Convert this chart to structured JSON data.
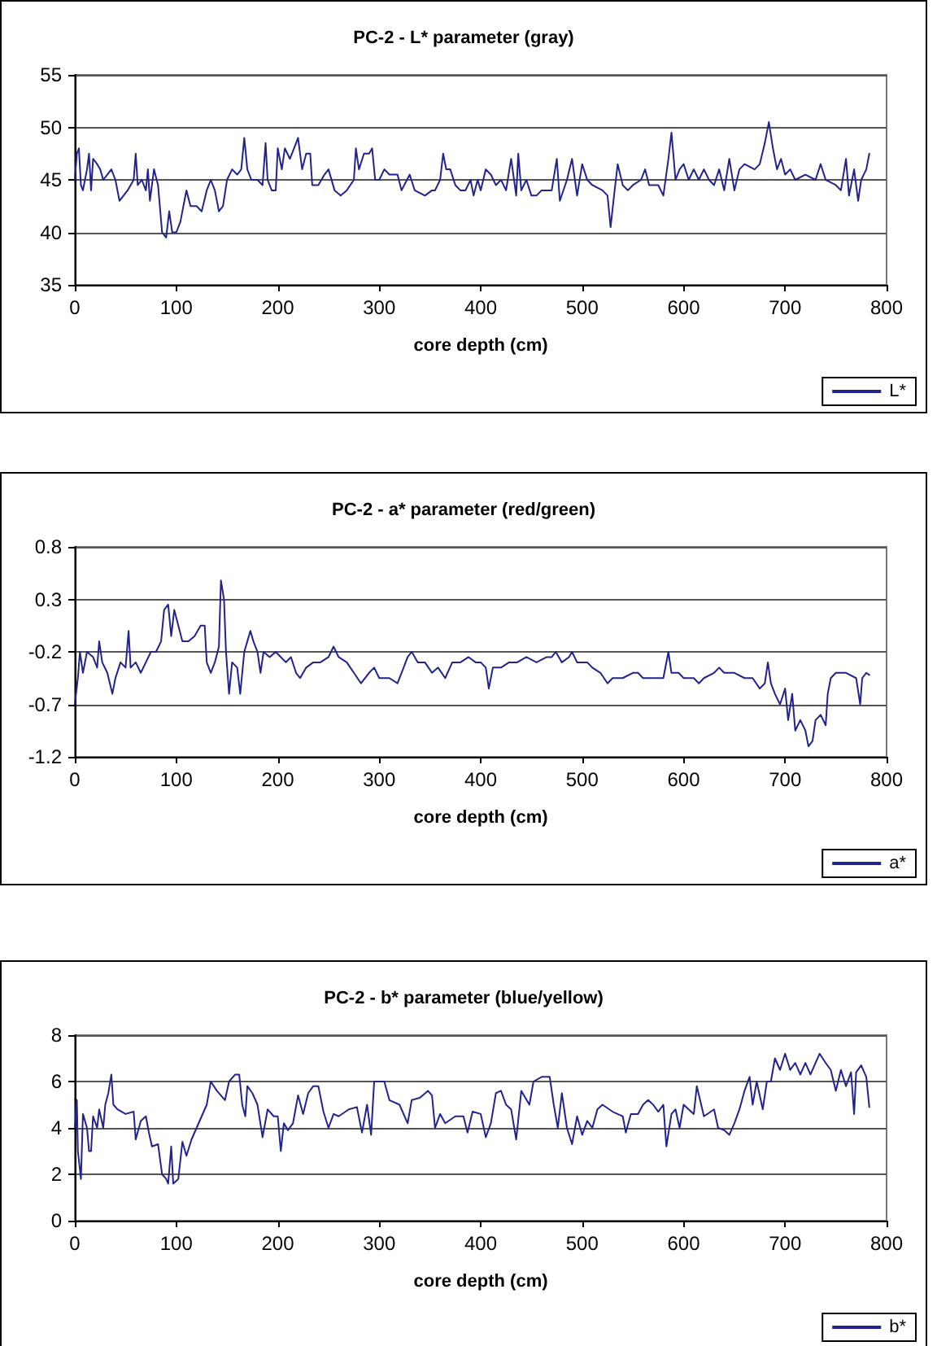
{
  "chart_data": [
    {
      "type": "line",
      "title": "PC-2 - L* parameter (gray)",
      "xlabel": "core depth (cm)",
      "xlim": [
        0,
        800
      ],
      "xticks": [
        0,
        100,
        200,
        300,
        400,
        500,
        600,
        700,
        800
      ],
      "ylim": [
        35,
        55
      ],
      "yticks": [
        35,
        40,
        45,
        50,
        55
      ],
      "grid": "y",
      "legend": "bottom right",
      "series": [
        {
          "name": "L*",
          "color": "#23238e",
          "x": [
            0,
            2,
            4,
            6,
            8,
            12,
            14,
            16,
            18,
            22,
            25,
            28,
            32,
            36,
            40,
            44,
            48,
            52,
            58,
            60,
            62,
            66,
            70,
            72,
            74,
            78,
            82,
            86,
            90,
            93,
            96,
            100,
            104,
            108,
            110,
            114,
            120,
            125,
            130,
            134,
            138,
            142,
            146,
            150,
            155,
            160,
            164,
            167,
            170,
            174,
            180,
            185,
            188,
            190,
            194,
            198,
            200,
            204,
            207,
            212,
            216,
            220,
            224,
            228,
            232,
            234,
            240,
            246,
            250,
            256,
            262,
            268,
            275,
            277,
            280,
            285,
            290,
            293,
            296,
            300,
            305,
            310,
            318,
            322,
            330,
            335,
            345,
            352,
            355,
            360,
            363,
            366,
            370,
            375,
            380,
            385,
            390,
            393,
            397,
            400,
            405,
            410,
            415,
            420,
            425,
            430,
            435,
            437,
            440,
            445,
            450,
            455,
            460,
            470,
            475,
            478,
            485,
            490,
            495,
            500,
            505,
            510,
            520,
            525,
            528,
            532,
            535,
            540,
            545,
            550,
            558,
            562,
            566,
            575,
            580,
            585,
            588,
            592,
            596,
            600,
            605,
            610,
            615,
            620,
            625,
            630,
            635,
            640,
            645,
            650,
            655,
            660,
            670,
            675,
            680,
            684,
            688,
            692,
            696,
            700,
            705,
            710,
            720,
            730,
            735,
            740,
            750,
            755,
            760,
            763,
            768,
            772,
            775,
            780,
            783
          ],
          "values": [
            45,
            47.5,
            48,
            44.5,
            44,
            46,
            47.5,
            44,
            47,
            46.5,
            46,
            45,
            45.5,
            46,
            45,
            43,
            43.5,
            44,
            45,
            47.5,
            44.5,
            45,
            44,
            46,
            43,
            46,
            44.5,
            40,
            39.5,
            42,
            40,
            40,
            41,
            43,
            44,
            42.5,
            42.5,
            42,
            44,
            45,
            44,
            42,
            42.5,
            45,
            46,
            45.5,
            46,
            49,
            46,
            45,
            45,
            44.5,
            48.5,
            45,
            44,
            44,
            48,
            46,
            48,
            47,
            48,
            49,
            46,
            47.5,
            47.5,
            44.5,
            44.5,
            45.5,
            46,
            44,
            43.5,
            44,
            45,
            48,
            46,
            47.5,
            47.5,
            48,
            45,
            45,
            46,
            45.5,
            45.5,
            44,
            45.5,
            44,
            43.5,
            44,
            44,
            45,
            47.5,
            46,
            46,
            44.5,
            44,
            44,
            45,
            43.5,
            45,
            44,
            46,
            45.5,
            44.5,
            45,
            44,
            47,
            43.5,
            47.5,
            44,
            45,
            43.5,
            43.5,
            44,
            44,
            47,
            43,
            45,
            47,
            43.5,
            46.5,
            45,
            44.5,
            44,
            43.5,
            40.5,
            44,
            46.5,
            44.5,
            44,
            44.5,
            45,
            46,
            44.5,
            44.5,
            43.5,
            47,
            49.5,
            45,
            46,
            46.5,
            45,
            46,
            45,
            46,
            45,
            44.5,
            46,
            44,
            47,
            44,
            46,
            46.5,
            46,
            46.5,
            48.5,
            50.5,
            48,
            46,
            47,
            45.5,
            46,
            45,
            45.5,
            45,
            46.5,
            45,
            44.5,
            44,
            47,
            43.5,
            46,
            43,
            45,
            46,
            47.5
          ]
        }
      ]
    },
    {
      "type": "line",
      "title": "PC-2 - a* parameter (red/green)",
      "xlabel": "core depth (cm)",
      "xlim": [
        0,
        800
      ],
      "xticks": [
        0,
        100,
        200,
        300,
        400,
        500,
        600,
        700,
        800
      ],
      "ylim": [
        -1.2,
        0.8
      ],
      "yticks": [
        -1.2,
        -0.7,
        -0.2,
        0.3,
        0.8
      ],
      "grid": "y",
      "legend": "bottom right",
      "series": [
        {
          "name": "a*",
          "color": "#23238e",
          "x": [
            0,
            3,
            5,
            8,
            12,
            18,
            22,
            24,
            27,
            32,
            37,
            40,
            45,
            50,
            53,
            55,
            60,
            65,
            70,
            75,
            80,
            85,
            88,
            92,
            95,
            98,
            102,
            106,
            112,
            118,
            124,
            128,
            130,
            134,
            138,
            142,
            144,
            147,
            149,
            152,
            155,
            160,
            163,
            167,
            170,
            173,
            176,
            180,
            183,
            186,
            192,
            198,
            203,
            208,
            213,
            218,
            222,
            228,
            235,
            242,
            250,
            255,
            260,
            268,
            275,
            282,
            290,
            295,
            300,
            310,
            318,
            322,
            328,
            332,
            338,
            345,
            352,
            358,
            365,
            372,
            380,
            388,
            395,
            400,
            405,
            408,
            412,
            420,
            428,
            436,
            445,
            455,
            465,
            470,
            474,
            480,
            487,
            490,
            495,
            500,
            505,
            510,
            518,
            525,
            530,
            540,
            550,
            555,
            560,
            570,
            580,
            585,
            588,
            595,
            600,
            610,
            615,
            620,
            630,
            635,
            640,
            650,
            660,
            668,
            675,
            680,
            683,
            686,
            690,
            695,
            700,
            703,
            707,
            710,
            715,
            720,
            723,
            727,
            730,
            735,
            740,
            742,
            745,
            750,
            760,
            770,
            774,
            776,
            780,
            783
          ],
          "values": [
            -0.7,
            -0.45,
            -0.2,
            -0.4,
            -0.2,
            -0.25,
            -0.35,
            -0.1,
            -0.3,
            -0.4,
            -0.6,
            -0.45,
            -0.3,
            -0.35,
            0.0,
            -0.35,
            -0.3,
            -0.4,
            -0.3,
            -0.2,
            -0.2,
            -0.1,
            0.2,
            0.25,
            -0.05,
            0.2,
            0.05,
            -0.1,
            -0.1,
            -0.05,
            0.05,
            0.05,
            -0.3,
            -0.4,
            -0.3,
            -0.15,
            0.48,
            0.3,
            -0.2,
            -0.6,
            -0.3,
            -0.35,
            -0.6,
            -0.2,
            -0.1,
            0.0,
            -0.1,
            -0.2,
            -0.4,
            -0.2,
            -0.25,
            -0.2,
            -0.25,
            -0.3,
            -0.25,
            -0.4,
            -0.45,
            -0.35,
            -0.3,
            -0.3,
            -0.25,
            -0.15,
            -0.25,
            -0.3,
            -0.4,
            -0.5,
            -0.4,
            -0.35,
            -0.45,
            -0.45,
            -0.5,
            -0.4,
            -0.25,
            -0.2,
            -0.3,
            -0.3,
            -0.4,
            -0.35,
            -0.45,
            -0.3,
            -0.3,
            -0.25,
            -0.3,
            -0.3,
            -0.35,
            -0.55,
            -0.35,
            -0.35,
            -0.3,
            -0.3,
            -0.25,
            -0.3,
            -0.25,
            -0.25,
            -0.2,
            -0.3,
            -0.25,
            -0.2,
            -0.3,
            -0.3,
            -0.3,
            -0.35,
            -0.4,
            -0.5,
            -0.45,
            -0.45,
            -0.4,
            -0.4,
            -0.45,
            -0.45,
            -0.45,
            -0.2,
            -0.4,
            -0.4,
            -0.45,
            -0.45,
            -0.5,
            -0.45,
            -0.4,
            -0.35,
            -0.4,
            -0.4,
            -0.45,
            -0.45,
            -0.55,
            -0.5,
            -0.3,
            -0.5,
            -0.6,
            -0.7,
            -0.55,
            -0.85,
            -0.6,
            -0.95,
            -0.85,
            -0.95,
            -1.1,
            -1.05,
            -0.85,
            -0.8,
            -0.9,
            -0.6,
            -0.45,
            -0.4,
            -0.4,
            -0.45,
            -0.7,
            -0.45,
            -0.4,
            -0.42
          ]
        }
      ]
    },
    {
      "type": "line",
      "title": "PC-2 - b* parameter (blue/yellow)",
      "xlabel": "core depth (cm)",
      "xlim": [
        0,
        800
      ],
      "xticks": [
        0,
        100,
        200,
        300,
        400,
        500,
        600,
        700,
        800
      ],
      "ylim": [
        0,
        8
      ],
      "yticks": [
        0,
        2,
        4,
        6,
        8
      ],
      "grid": "y",
      "legend": "bottom right",
      "series": [
        {
          "name": "b*",
          "color": "#23238e",
          "x": [
            0,
            2,
            3,
            6,
            8,
            12,
            14,
            16,
            18,
            22,
            24,
            28,
            30,
            33,
            36,
            38,
            42,
            50,
            58,
            60,
            65,
            70,
            73,
            76,
            82,
            86,
            90,
            92,
            95,
            97,
            102,
            106,
            110,
            115,
            120,
            125,
            130,
            134,
            140,
            148,
            152,
            158,
            162,
            165,
            168,
            170,
            175,
            180,
            185,
            190,
            196,
            200,
            203,
            206,
            210,
            215,
            220,
            225,
            230,
            235,
            240,
            245,
            250,
            255,
            260,
            270,
            278,
            283,
            288,
            292,
            295,
            300,
            305,
            310,
            320,
            328,
            332,
            340,
            348,
            352,
            355,
            360,
            365,
            375,
            383,
            387,
            392,
            400,
            405,
            410,
            415,
            420,
            425,
            430,
            435,
            440,
            448,
            452,
            460,
            468,
            472,
            476,
            480,
            485,
            490,
            495,
            500,
            505,
            510,
            515,
            520,
            530,
            540,
            543,
            548,
            555,
            560,
            565,
            570,
            575,
            580,
            583,
            588,
            592,
            596,
            600,
            610,
            613,
            620,
            630,
            634,
            640,
            645,
            650,
            655,
            660,
            665,
            668,
            672,
            678,
            682,
            686,
            690,
            695,
            700,
            705,
            710,
            715,
            720,
            725,
            730,
            734,
            740,
            745,
            750,
            755,
            760,
            765,
            768,
            770,
            775,
            780,
            783
          ],
          "values": [
            4,
            5.2,
            3,
            1.8,
            4.6,
            4,
            3,
            3,
            4.5,
            4,
            4.8,
            4,
            5,
            5.5,
            6.3,
            5,
            4.8,
            4.6,
            4.7,
            3.5,
            4.3,
            4.5,
            3.8,
            3.2,
            3.3,
            2,
            1.8,
            1.6,
            3.2,
            1.6,
            1.8,
            3.4,
            2.8,
            3.5,
            4,
            4.5,
            5,
            6,
            5.6,
            5.2,
            6,
            6.3,
            6.3,
            5,
            4.5,
            5.8,
            5.5,
            5,
            3.6,
            4.8,
            4.5,
            4.5,
            3,
            4.2,
            3.9,
            4.2,
            5.4,
            4.6,
            5.5,
            5.8,
            5.8,
            4.7,
            4,
            4.6,
            4.5,
            4.8,
            4.9,
            3.8,
            5,
            3.7,
            6,
            6,
            6,
            5.2,
            5,
            4.2,
            5.2,
            5.3,
            5.6,
            5.4,
            4,
            4.6,
            4.2,
            4.5,
            4.5,
            3.8,
            4.7,
            4.6,
            3.6,
            4.2,
            5.5,
            5.6,
            5,
            4.8,
            3.5,
            5.6,
            5,
            6,
            6.2,
            6.2,
            5,
            4,
            5.5,
            4,
            3.3,
            4.5,
            3.7,
            4.3,
            4,
            4.8,
            5,
            4.7,
            4.5,
            3.8,
            4.6,
            4.6,
            5,
            5.2,
            5,
            4.7,
            5,
            3.2,
            4.6,
            4.8,
            4,
            5,
            4.6,
            5.8,
            4.5,
            4.8,
            4,
            3.9,
            3.7,
            4.2,
            4.8,
            5.6,
            6.2,
            5,
            6,
            4.8,
            6,
            6,
            7,
            6.5,
            7.2,
            6.5,
            6.8,
            6.3,
            6.8,
            6.3,
            6.8,
            7.2,
            6.8,
            6.5,
            5.6,
            6.5,
            5.8,
            6.4,
            4.6,
            6.4,
            6.7,
            6.2,
            4.9
          ]
        }
      ]
    }
  ]
}
